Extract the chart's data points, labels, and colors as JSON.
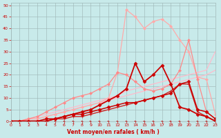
{
  "xlabel": "Vent moyen/en rafales ( km/h )",
  "bg_color": "#c8eaea",
  "grid_color": "#a0b8b8",
  "text_color": "#cc0000",
  "xlim": [
    0,
    23
  ],
  "ylim": [
    0,
    51
  ],
  "xticks": [
    0,
    1,
    2,
    3,
    4,
    5,
    6,
    7,
    8,
    9,
    10,
    11,
    12,
    13,
    14,
    15,
    16,
    17,
    18,
    19,
    20,
    21,
    22,
    23
  ],
  "yticks": [
    0,
    5,
    10,
    15,
    20,
    25,
    30,
    35,
    40,
    45,
    50
  ],
  "series": [
    {
      "x": [
        0,
        1,
        2,
        3,
        4,
        5,
        6,
        7,
        8,
        9,
        10,
        11,
        12,
        13,
        14,
        15,
        16,
        17,
        18,
        19,
        20,
        21,
        22,
        23
      ],
      "y": [
        0,
        0,
        1,
        2,
        3,
        4,
        5,
        6,
        7,
        8,
        9,
        10,
        11,
        13,
        14,
        15,
        16,
        17,
        18,
        19,
        20,
        21,
        22,
        30
      ],
      "color": "#ffbbcc",
      "lw": 0.9,
      "ms": 0,
      "marker": "None"
    },
    {
      "x": [
        0,
        1,
        2,
        3,
        4,
        5,
        6,
        7,
        8,
        9,
        10,
        11,
        12,
        13,
        14,
        15,
        16,
        17,
        18,
        19,
        20,
        21,
        22,
        23
      ],
      "y": [
        0,
        0,
        1,
        1,
        2,
        3,
        4,
        5,
        6,
        7,
        8,
        9,
        10,
        11,
        12,
        13,
        14,
        15,
        16,
        17,
        18,
        19,
        20,
        22
      ],
      "color": "#ffbbcc",
      "lw": 0.9,
      "ms": 0,
      "marker": "None"
    },
    {
      "x": [
        0,
        1,
        2,
        3,
        4,
        5,
        6,
        7,
        8,
        9,
        10,
        11,
        12,
        13,
        14,
        15,
        16,
        17,
        18,
        19,
        20,
        21,
        22,
        23
      ],
      "y": [
        0,
        0,
        1,
        1,
        2,
        3,
        4,
        5,
        6,
        7,
        8,
        10,
        21,
        48,
        45,
        40,
        43,
        44,
        41,
        35,
        30,
        19,
        18,
        3
      ],
      "color": "#ffaaaa",
      "lw": 0.9,
      "ms": 2.0,
      "marker": "D"
    },
    {
      "x": [
        0,
        1,
        2,
        3,
        4,
        5,
        6,
        7,
        8,
        9,
        10,
        11,
        12,
        13,
        14,
        15,
        16,
        17,
        18,
        19,
        20,
        21,
        22,
        23
      ],
      "y": [
        0,
        0,
        1,
        2,
        4,
        6,
        8,
        10,
        11,
        12,
        14,
        16,
        21,
        20,
        17,
        14,
        13,
        14,
        16,
        22,
        35,
        18,
        4,
        1
      ],
      "color": "#ff8888",
      "lw": 0.9,
      "ms": 2.0,
      "marker": "D"
    },
    {
      "x": [
        0,
        1,
        2,
        3,
        4,
        5,
        6,
        7,
        8,
        9,
        10,
        11,
        12,
        13,
        14,
        15,
        16,
        17,
        18,
        19,
        20,
        21,
        22,
        23
      ],
      "y": [
        0,
        0,
        0,
        0,
        0,
        1,
        1,
        2,
        2,
        3,
        4,
        5,
        6,
        7,
        8,
        9,
        10,
        11,
        13,
        16,
        16,
        4,
        2,
        0
      ],
      "color": "#cc2222",
      "lw": 1.0,
      "ms": 2.5,
      "marker": "+"
    },
    {
      "x": [
        0,
        1,
        2,
        3,
        4,
        5,
        6,
        7,
        8,
        9,
        10,
        11,
        12,
        13,
        14,
        15,
        16,
        17,
        18,
        19,
        20,
        21,
        22,
        23
      ],
      "y": [
        0,
        0,
        0,
        0,
        1,
        1,
        2,
        3,
        3,
        4,
        5,
        6,
        7,
        8,
        8,
        9,
        10,
        11,
        12,
        16,
        17,
        5,
        4,
        1
      ],
      "color": "#cc0000",
      "lw": 1.1,
      "ms": 2.5,
      "marker": "D"
    },
    {
      "x": [
        0,
        1,
        2,
        3,
        4,
        5,
        6,
        7,
        8,
        9,
        10,
        11,
        12,
        13,
        14,
        15,
        16,
        17,
        18,
        19,
        20,
        21,
        22,
        23
      ],
      "y": [
        0,
        0,
        0,
        0,
        0,
        1,
        2,
        3,
        4,
        5,
        7,
        9,
        11,
        14,
        25,
        17,
        20,
        24,
        16,
        6,
        5,
        3,
        2,
        0
      ],
      "color": "#cc0000",
      "lw": 1.3,
      "ms": 2.5,
      "marker": "D"
    },
    {
      "x": [
        0,
        1,
        2,
        3,
        4,
        5,
        6,
        7,
        8,
        9,
        10,
        11,
        12,
        13,
        14,
        15,
        16,
        17,
        18,
        19,
        20,
        21,
        22,
        23
      ],
      "y": [
        0,
        0,
        0,
        0,
        0,
        0,
        0,
        0,
        0,
        0,
        0,
        0,
        0,
        0,
        0,
        0,
        0,
        0,
        0,
        0,
        0,
        0,
        0,
        0
      ],
      "color": "#cc0000",
      "lw": 0.5,
      "ms": 2.0,
      "marker": ">"
    }
  ]
}
